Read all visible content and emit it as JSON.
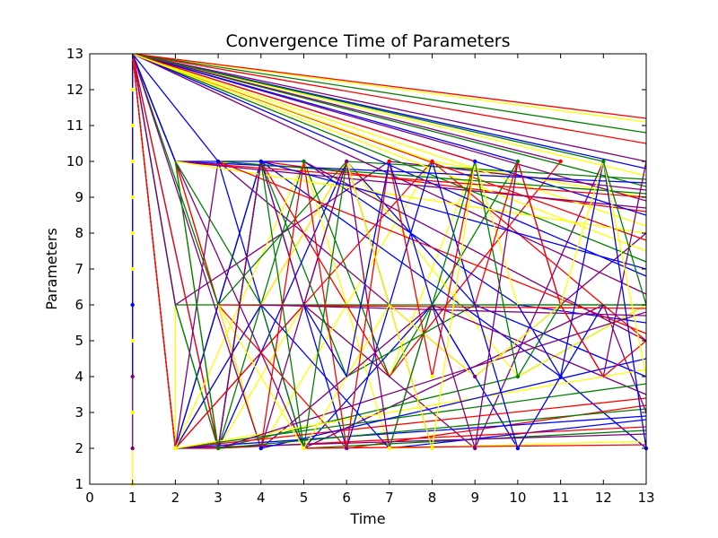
{
  "chart_data": {
    "type": "line",
    "title": "Convergence Time of Parameters",
    "xlabel": "Time",
    "ylabel": "Parameters",
    "xlim": [
      0,
      13
    ],
    "ylim": [
      1,
      13
    ],
    "xticks": [
      "0",
      "1",
      "2",
      "3",
      "4",
      "5",
      "6",
      "7",
      "8",
      "9",
      "10",
      "11",
      "12",
      "13"
    ],
    "yticks": [
      "1",
      "2",
      "3",
      "4",
      "5",
      "6",
      "7",
      "8",
      "9",
      "10",
      "11",
      "12",
      "13"
    ],
    "grid": false,
    "legend": "none",
    "colors": [
      "#0000ff",
      "#ff0000",
      "#008000",
      "#ffff00",
      "#800080"
    ],
    "series": [
      {
        "color": "#ffff00",
        "x": [
          1,
          1
        ],
        "y": [
          1,
          13
        ]
      },
      {
        "color": "#800080",
        "x": [
          1,
          1
        ],
        "y": [
          2,
          13
        ]
      },
      {
        "color": "#0000ff",
        "x": [
          1,
          1
        ],
        "y": [
          4,
          13
        ]
      },
      {
        "color": "#ffff00",
        "x": [
          1,
          2,
          2
        ],
        "y": [
          13,
          2,
          6
        ]
      },
      {
        "color": "#800080",
        "x": [
          1,
          2,
          3,
          4,
          6
        ],
        "y": [
          13,
          10,
          6,
          2,
          10
        ]
      },
      {
        "color": "#0000ff",
        "x": [
          1,
          2,
          3,
          4,
          5,
          6
        ],
        "y": [
          13,
          10,
          2,
          10,
          6,
          2
        ]
      },
      {
        "color": "#ff0000",
        "x": [
          1,
          2,
          4,
          6,
          8
        ],
        "y": [
          13,
          2,
          6,
          10,
          2
        ]
      },
      {
        "color": "#008000",
        "x": [
          1,
          2,
          3,
          5,
          7,
          10
        ],
        "y": [
          13,
          6,
          2,
          10,
          4,
          10
        ]
      },
      {
        "color": "#ffff00",
        "x": [
          1,
          2,
          3,
          5,
          7,
          9
        ],
        "y": [
          13,
          10,
          2,
          6,
          4,
          10
        ]
      },
      {
        "color": "#0000ff",
        "x": [
          1,
          3,
          5,
          8,
          10
        ],
        "y": [
          13,
          10,
          2,
          6,
          2
        ]
      },
      {
        "color": "#ff0000",
        "x": [
          1,
          2,
          4,
          7,
          11
        ],
        "y": [
          13,
          2,
          10,
          4,
          10
        ]
      },
      {
        "color": "#800080",
        "x": [
          1,
          2,
          5,
          9,
          12
        ],
        "y": [
          13,
          2,
          6,
          2,
          10
        ]
      },
      {
        "color": "#008000",
        "x": [
          1,
          2,
          4,
          6,
          9,
          13
        ],
        "y": [
          13,
          2,
          10,
          4,
          6,
          6
        ]
      },
      {
        "color": "#ffff00",
        "x": [
          1,
          2,
          4,
          8,
          13
        ],
        "y": [
          13,
          10,
          2,
          10,
          9
        ]
      },
      {
        "color": "#0000ff",
        "x": [
          1,
          2,
          4,
          11,
          13
        ],
        "y": [
          13,
          2,
          10,
          4,
          2
        ]
      },
      {
        "color": "#ff0000",
        "x": [
          1,
          2,
          3,
          6,
          13
        ],
        "y": [
          13,
          10,
          6,
          2,
          3.2
        ]
      },
      {
        "color": "#800080",
        "x": [
          1,
          2,
          5,
          12,
          13
        ],
        "y": [
          13,
          10,
          2,
          6,
          3
        ]
      },
      {
        "color": "#008000",
        "x": [
          1,
          2,
          3,
          10,
          13
        ],
        "y": [
          13,
          6,
          2,
          4,
          6
        ]
      },
      {
        "color": "#0000ff",
        "x": [
          1,
          3,
          6,
          9,
          13
        ],
        "y": [
          13,
          2,
          10,
          6,
          4
        ]
      },
      {
        "color": "#ff0000",
        "x": [
          1,
          2,
          5,
          8,
          13
        ],
        "y": [
          13,
          2,
          6,
          10,
          5
        ]
      },
      {
        "color": "#ffff00",
        "x": [
          1,
          2,
          6,
          10,
          13
        ],
        "y": [
          13,
          2,
          10,
          4,
          6
        ]
      },
      {
        "color": "#800080",
        "x": [
          1,
          2,
          7,
          13
        ],
        "y": [
          13,
          6,
          10,
          9.2
        ]
      },
      {
        "color": "#008000",
        "x": [
          1,
          2,
          4,
          5,
          13
        ],
        "y": [
          13,
          10,
          6,
          2,
          2.5
        ]
      },
      {
        "color": "#0000ff",
        "x": [
          1,
          2,
          4,
          7,
          13
        ],
        "y": [
          13,
          2,
          6,
          2,
          2.8
        ]
      },
      {
        "color": "#ff0000",
        "x": [
          1,
          3,
          4,
          13
        ],
        "y": [
          13,
          2,
          10,
          8.6
        ]
      },
      {
        "color": "#800080",
        "x": [
          1,
          2,
          3,
          9,
          13
        ],
        "y": [
          13,
          2,
          10,
          4,
          8
        ]
      },
      {
        "color": "#ffff00",
        "x": [
          1,
          2,
          5,
          7,
          13
        ],
        "y": [
          13,
          2,
          10,
          2,
          2.2
        ]
      },
      {
        "color": "#008000",
        "x": [
          1,
          3,
          6,
          13
        ],
        "y": [
          13,
          6,
          10,
          9.5
        ]
      },
      {
        "color": "#0000ff",
        "x": [
          1,
          2,
          5,
          10,
          13
        ],
        "y": [
          13,
          10,
          10,
          6,
          5.5
        ]
      },
      {
        "color": "#ff0000",
        "x": [
          1,
          2,
          3,
          13
        ],
        "y": [
          13,
          2,
          2,
          2.6
        ]
      },
      {
        "color": "#800080",
        "x": [
          1,
          4,
          8,
          13
        ],
        "y": [
          13,
          2,
          6,
          3.5
        ]
      },
      {
        "color": "#ffff00",
        "x": [
          1,
          13
        ],
        "y": [
          13,
          11.1
        ]
      },
      {
        "color": "#ff0000",
        "x": [
          1,
          13
        ],
        "y": [
          13,
          10.5
        ]
      },
      {
        "color": "#008000",
        "x": [
          1,
          13
        ],
        "y": [
          13,
          10.8
        ]
      },
      {
        "color": "#0000ff",
        "x": [
          1,
          13
        ],
        "y": [
          13,
          9.8
        ]
      },
      {
        "color": "#800080",
        "x": [
          1,
          13
        ],
        "y": [
          13,
          10.0
        ]
      },
      {
        "color": "#ffff00",
        "x": [
          1,
          13
        ],
        "y": [
          13,
          9.6
        ]
      },
      {
        "color": "#ff0000",
        "x": [
          1,
          13
        ],
        "y": [
          13,
          11.2
        ]
      },
      {
        "color": "#008000",
        "x": [
          1,
          13
        ],
        "y": [
          13,
          9.3
        ]
      },
      {
        "color": "#0000ff",
        "x": [
          1,
          13
        ],
        "y": [
          13,
          8.5
        ]
      },
      {
        "color": "#800080",
        "x": [
          1,
          13
        ],
        "y": [
          13,
          8.9
        ]
      },
      {
        "color": "#ffff00",
        "x": [
          1,
          13
        ],
        "y": [
          13,
          8.2
        ]
      },
      {
        "color": "#ff0000",
        "x": [
          1,
          13
        ],
        "y": [
          13,
          7.8
        ]
      },
      {
        "color": "#008000",
        "x": [
          1,
          13
        ],
        "y": [
          13,
          7.2
        ]
      },
      {
        "color": "#0000ff",
        "x": [
          1,
          13
        ],
        "y": [
          13,
          6.8
        ]
      },
      {
        "color": "#800080",
        "x": [
          1,
          13
        ],
        "y": [
          13,
          6.3
        ]
      },
      {
        "color": "#ffff00",
        "x": [
          1,
          13
        ],
        "y": [
          13,
          7.5
        ]
      },
      {
        "color": "#0000ff",
        "x": [
          1,
          10
        ],
        "y": [
          13,
          10
        ]
      },
      {
        "color": "#800080",
        "x": [
          1,
          11
        ],
        "y": [
          13,
          10
        ]
      },
      {
        "color": "#008000",
        "x": [
          1,
          12
        ],
        "y": [
          13,
          10
        ]
      },
      {
        "color": "#ff0000",
        "x": [
          1,
          9
        ],
        "y": [
          13,
          10
        ]
      },
      {
        "color": "#ffff00",
        "x": [
          1,
          8
        ],
        "y": [
          13,
          10
        ]
      },
      {
        "color": "#800080",
        "x": [
          2,
          13
        ],
        "y": [
          2,
          2.4
        ]
      },
      {
        "color": "#0000ff",
        "x": [
          2,
          13
        ],
        "y": [
          2,
          2.9
        ]
      },
      {
        "color": "#ff0000",
        "x": [
          2,
          13
        ],
        "y": [
          2,
          3.4
        ]
      },
      {
        "color": "#008000",
        "x": [
          2,
          13
        ],
        "y": [
          2,
          3.8
        ]
      },
      {
        "color": "#ffff00",
        "x": [
          2,
          13
        ],
        "y": [
          2,
          4.2
        ]
      },
      {
        "color": "#800080",
        "x": [
          3,
          13
        ],
        "y": [
          2,
          5.8
        ]
      },
      {
        "color": "#0000ff",
        "x": [
          4,
          13
        ],
        "y": [
          2,
          4.5
        ]
      },
      {
        "color": "#ff0000",
        "x": [
          5,
          13
        ],
        "y": [
          2,
          2.1
        ]
      },
      {
        "color": "#008000",
        "x": [
          3,
          13
        ],
        "y": [
          2,
          3.1
        ]
      },
      {
        "color": "#0000ff",
        "x": [
          2,
          13
        ],
        "y": [
          10,
          9.4
        ]
      },
      {
        "color": "#ff0000",
        "x": [
          2,
          13
        ],
        "y": [
          10,
          9.0
        ]
      },
      {
        "color": "#800080",
        "x": [
          2,
          13
        ],
        "y": [
          10,
          8.7
        ]
      },
      {
        "color": "#008000",
        "x": [
          3,
          13
        ],
        "y": [
          10,
          9.1
        ]
      },
      {
        "color": "#ffff00",
        "x": [
          2,
          13
        ],
        "y": [
          10,
          8.0
        ]
      },
      {
        "color": "#0000ff",
        "x": [
          4,
          13
        ],
        "y": [
          10,
          7.0
        ]
      },
      {
        "color": "#ff0000",
        "x": [
          3,
          13
        ],
        "y": [
          10,
          5.2
        ]
      },
      {
        "color": "#800080",
        "x": [
          5,
          13
        ],
        "y": [
          10,
          5.0
        ]
      },
      {
        "color": "#008000",
        "x": [
          2,
          13
        ],
        "y": [
          6,
          6.0
        ]
      },
      {
        "color": "#ff0000",
        "x": [
          3,
          13
        ],
        "y": [
          6,
          5.9
        ]
      },
      {
        "color": "#800080",
        "x": [
          4,
          13
        ],
        "y": [
          6,
          5.7
        ]
      },
      {
        "color": "#0000ff",
        "x": [
          6,
          8,
          10,
          12
        ],
        "y": [
          2,
          10,
          2,
          6
        ]
      },
      {
        "color": "#ffff00",
        "x": [
          3,
          5,
          7,
          9,
          11
        ],
        "y": [
          6,
          2,
          6,
          4,
          6
        ]
      },
      {
        "color": "#008000",
        "x": [
          2,
          3,
          4,
          5,
          6,
          7
        ],
        "y": [
          10,
          2,
          10,
          2,
          10,
          6
        ]
      },
      {
        "color": "#800080",
        "x": [
          3,
          4,
          5,
          6,
          7,
          8
        ],
        "y": [
          2,
          10,
          6,
          10,
          2,
          6
        ]
      },
      {
        "color": "#ff0000",
        "x": [
          4,
          5,
          6,
          7,
          8,
          9
        ],
        "y": [
          2,
          10,
          2,
          10,
          4,
          10
        ]
      },
      {
        "color": "#0000ff",
        "x": [
          5,
          6,
          7,
          8,
          9
        ],
        "y": [
          6,
          4,
          10,
          6,
          4
        ]
      },
      {
        "color": "#ffff00",
        "x": [
          6,
          7,
          8,
          9,
          10
        ],
        "y": [
          10,
          6,
          2,
          10,
          6
        ]
      },
      {
        "color": "#008000",
        "x": [
          7,
          8,
          9,
          10,
          11
        ],
        "y": [
          2,
          6,
          10,
          4,
          6
        ]
      },
      {
        "color": "#800080",
        "x": [
          8,
          9,
          10,
          11,
          12,
          13
        ],
        "y": [
          6,
          2,
          10,
          6,
          4,
          10
        ]
      },
      {
        "color": "#ff0000",
        "x": [
          9,
          10,
          11,
          12,
          13
        ],
        "y": [
          6,
          10,
          6,
          4,
          5
        ]
      },
      {
        "color": "#0000ff",
        "x": [
          10,
          11,
          12,
          13
        ],
        "y": [
          6,
          4,
          10,
          2
        ]
      },
      {
        "color": "#ffff00",
        "x": [
          11,
          12,
          13
        ],
        "y": [
          6,
          10,
          4
        ]
      },
      {
        "color": "#008000",
        "x": [
          12,
          13
        ],
        "y": [
          10,
          6
        ]
      }
    ],
    "markers": [
      {
        "color": "#ffff00",
        "x": 1,
        "y": 1
      },
      {
        "color": "#800080",
        "x": 1,
        "y": 2
      },
      {
        "color": "#ffff00",
        "x": 1,
        "y": 3
      },
      {
        "color": "#800080",
        "x": 1,
        "y": 4
      },
      {
        "color": "#ffff00",
        "x": 1,
        "y": 5
      },
      {
        "color": "#0000ff",
        "x": 1,
        "y": 6
      },
      {
        "color": "#ffff00",
        "x": 1,
        "y": 7
      },
      {
        "color": "#ffff00",
        "x": 1,
        "y": 8
      },
      {
        "color": "#ffff00",
        "x": 1,
        "y": 9
      },
      {
        "color": "#ffff00",
        "x": 1,
        "y": 10
      },
      {
        "color": "#ffff00",
        "x": 1,
        "y": 11
      },
      {
        "color": "#ffff00",
        "x": 1,
        "y": 12
      },
      {
        "color": "#ffff00",
        "x": 2,
        "y": 2
      },
      {
        "color": "#008000",
        "x": 3,
        "y": 2
      },
      {
        "color": "#0000ff",
        "x": 4,
        "y": 2
      },
      {
        "color": "#ffff00",
        "x": 5,
        "y": 2
      },
      {
        "color": "#800080",
        "x": 6,
        "y": 2
      },
      {
        "color": "#ffff00",
        "x": 7,
        "y": 2
      },
      {
        "color": "#ffff00",
        "x": 8,
        "y": 2
      },
      {
        "color": "#800080",
        "x": 9,
        "y": 2
      },
      {
        "color": "#0000ff",
        "x": 10,
        "y": 2
      },
      {
        "color": "#0000ff",
        "x": 13,
        "y": 2
      },
      {
        "color": "#ffff00",
        "x": 8,
        "y": 4
      },
      {
        "color": "#800080",
        "x": 9,
        "y": 4
      },
      {
        "color": "#008000",
        "x": 10,
        "y": 4
      },
      {
        "color": "#0000ff",
        "x": 11,
        "y": 4
      },
      {
        "color": "#800080",
        "x": 7,
        "y": 10
      },
      {
        "color": "#ff0000",
        "x": 7,
        "y": 10
      },
      {
        "color": "#ff0000",
        "x": 8,
        "y": 10
      },
      {
        "color": "#0000ff",
        "x": 9,
        "y": 10
      },
      {
        "color": "#008000",
        "x": 10,
        "y": 10
      },
      {
        "color": "#ff0000",
        "x": 11,
        "y": 10
      },
      {
        "color": "#008000",
        "x": 12,
        "y": 10
      },
      {
        "color": "#0000ff",
        "x": 3,
        "y": 10
      },
      {
        "color": "#0000ff",
        "x": 4,
        "y": 10
      },
      {
        "color": "#008000",
        "x": 5,
        "y": 10
      },
      {
        "color": "#800080",
        "x": 6,
        "y": 10
      }
    ]
  }
}
